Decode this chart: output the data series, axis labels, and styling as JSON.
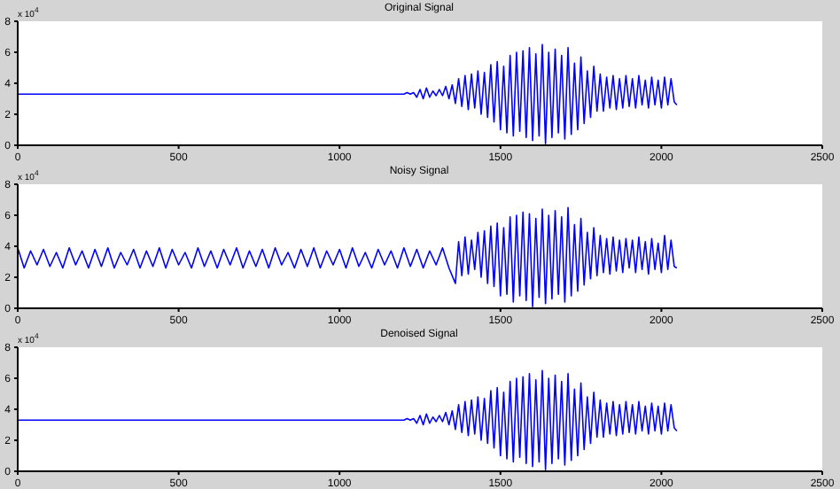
{
  "chart_data": [
    {
      "type": "line",
      "title": "Original Signal",
      "annotations": [
        "x 10$^{4}$"
      ],
      "xlim": [
        0,
        2500
      ],
      "xticks": [
        0,
        500,
        1000,
        1500,
        2000,
        2500
      ],
      "ylim": [
        0,
        8
      ],
      "yticks": [
        0,
        2,
        4,
        6,
        8
      ],
      "series": [
        {
          "color": "#0000ff",
          "x": [
            0,
            1200,
            1210,
            1220,
            1230,
            1240,
            1250,
            1260,
            1270,
            1280,
            1290,
            1300,
            1310,
            1320,
            1330,
            1340,
            1350,
            1360,
            1370,
            1380,
            1390,
            1400,
            1410,
            1420,
            1430,
            1440,
            1450,
            1460,
            1470,
            1480,
            1490,
            1500,
            1510,
            1520,
            1530,
            1540,
            1550,
            1560,
            1570,
            1580,
            1590,
            1600,
            1610,
            1620,
            1630,
            1640,
            1650,
            1660,
            1670,
            1680,
            1690,
            1700,
            1710,
            1720,
            1730,
            1740,
            1750,
            1760,
            1770,
            1780,
            1790,
            1800,
            1810,
            1820,
            1830,
            1840,
            1850,
            1860,
            1870,
            1880,
            1890,
            1900,
            1910,
            1920,
            1930,
            1940,
            1950,
            1960,
            1970,
            1980,
            1990,
            2000,
            2010,
            2020,
            2030,
            2040,
            2048
          ],
          "values": [
            3.3,
            3.3,
            3.4,
            3.3,
            3.4,
            3.1,
            3.6,
            3.0,
            3.7,
            3.1,
            3.5,
            3.2,
            3.6,
            3.2,
            3.8,
            3.0,
            3.9,
            2.7,
            4.3,
            2.5,
            4.5,
            2.3,
            4.6,
            2.4,
            4.8,
            2.0,
            4.7,
            1.8,
            5.2,
            1.5,
            5.4,
            1.0,
            5.1,
            0.8,
            5.8,
            0.6,
            6.0,
            0.9,
            6.1,
            0.5,
            6.3,
            0.3,
            5.9,
            0.6,
            6.5,
            0.1,
            6.0,
            0.5,
            6.2,
            0.8,
            5.8,
            0.4,
            6.3,
            0.7,
            5.3,
            1.0,
            5.7,
            1.4,
            4.8,
            1.8,
            5.1,
            2.2,
            4.6,
            2.2,
            4.4,
            2.4,
            4.5,
            2.3,
            4.3,
            2.4,
            4.5,
            2.5,
            4.3,
            2.4,
            4.5,
            2.6,
            4.2,
            2.4,
            4.4,
            2.6,
            4.2,
            2.4,
            4.4,
            2.6,
            4.3,
            2.8,
            2.6
          ]
        }
      ]
    },
    {
      "type": "line",
      "title": "Noisy Signal",
      "annotations": [
        "x 10$^{4}$"
      ],
      "xlim": [
        0,
        2500
      ],
      "xticks": [
        0,
        500,
        1000,
        1500,
        2000,
        2500
      ],
      "ylim": [
        0,
        8
      ],
      "yticks": [
        0,
        2,
        4,
        6,
        8
      ],
      "series": [
        {
          "color": "#0000ff",
          "x": [
            0,
            20,
            40,
            60,
            80,
            100,
            120,
            140,
            160,
            180,
            200,
            220,
            240,
            260,
            280,
            300,
            320,
            340,
            360,
            380,
            400,
            420,
            440,
            460,
            480,
            500,
            520,
            540,
            560,
            580,
            600,
            620,
            640,
            660,
            680,
            700,
            720,
            740,
            760,
            780,
            800,
            820,
            840,
            860,
            880,
            900,
            920,
            940,
            960,
            980,
            1000,
            1020,
            1040,
            1060,
            1080,
            1100,
            1120,
            1140,
            1160,
            1180,
            1200,
            1220,
            1240,
            1260,
            1280,
            1300,
            1320,
            1340,
            1360,
            1370,
            1380,
            1390,
            1400,
            1410,
            1420,
            1430,
            1440,
            1450,
            1460,
            1470,
            1480,
            1490,
            1500,
            1510,
            1520,
            1530,
            1540,
            1550,
            1560,
            1570,
            1580,
            1590,
            1600,
            1610,
            1620,
            1630,
            1640,
            1650,
            1660,
            1670,
            1680,
            1690,
            1700,
            1710,
            1720,
            1730,
            1740,
            1750,
            1760,
            1770,
            1780,
            1790,
            1800,
            1810,
            1820,
            1830,
            1840,
            1850,
            1860,
            1870,
            1880,
            1890,
            1900,
            1910,
            1920,
            1930,
            1940,
            1950,
            1960,
            1970,
            1980,
            1990,
            2000,
            2010,
            2020,
            2030,
            2040,
            2048
          ],
          "values": [
            3.9,
            2.6,
            3.7,
            2.8,
            3.8,
            2.7,
            3.6,
            2.6,
            3.9,
            2.8,
            3.7,
            2.6,
            3.8,
            2.7,
            3.9,
            2.6,
            3.6,
            2.8,
            3.8,
            2.6,
            3.7,
            2.7,
            3.9,
            2.6,
            3.8,
            2.8,
            3.6,
            2.6,
            3.9,
            2.7,
            3.7,
            2.6,
            3.8,
            2.8,
            3.9,
            2.6,
            3.7,
            2.7,
            3.8,
            2.6,
            3.9,
            2.8,
            3.6,
            2.6,
            3.8,
            2.7,
            3.9,
            2.6,
            3.7,
            2.8,
            3.8,
            2.6,
            3.9,
            2.7,
            3.6,
            2.6,
            3.8,
            2.8,
            3.7,
            2.6,
            3.9,
            2.7,
            3.8,
            2.6,
            3.7,
            2.8,
            3.9,
            2.6,
            1.6,
            4.3,
            2.1,
            4.6,
            2.2,
            4.4,
            2.5,
            4.9,
            2.0,
            5.0,
            1.6,
            5.3,
            1.4,
            5.5,
            0.8,
            5.2,
            0.9,
            5.9,
            0.4,
            6.0,
            0.8,
            6.2,
            0.5,
            6.1,
            0.1,
            5.8,
            0.7,
            6.4,
            0.3,
            6.0,
            0.6,
            6.3,
            0.9,
            5.9,
            0.4,
            6.5,
            0.8,
            5.4,
            1.1,
            5.8,
            1.5,
            4.9,
            1.9,
            5.2,
            2.1,
            4.7,
            2.3,
            4.5,
            2.2,
            4.6,
            2.4,
            4.4,
            2.3,
            4.5,
            2.6,
            4.4,
            2.3,
            4.6,
            2.5,
            4.3,
            2.2,
            4.5,
            2.5,
            4.2,
            2.3,
            4.7,
            2.5,
            4.4,
            2.7,
            2.6
          ]
        }
      ]
    },
    {
      "type": "line",
      "title": "Denoised Signal",
      "annotations": [
        "x 10$^{4}$"
      ],
      "xlim": [
        0,
        2500
      ],
      "xticks": [
        0,
        500,
        1000,
        1500,
        2000,
        2500
      ],
      "ylim": [
        0,
        8
      ],
      "yticks": [
        0,
        2,
        4,
        6,
        8
      ],
      "series": [
        {
          "color": "#0000ff",
          "x": [
            0,
            1200,
            1210,
            1220,
            1230,
            1240,
            1250,
            1260,
            1270,
            1280,
            1290,
            1300,
            1310,
            1320,
            1330,
            1340,
            1350,
            1360,
            1370,
            1380,
            1390,
            1400,
            1410,
            1420,
            1430,
            1440,
            1450,
            1460,
            1470,
            1480,
            1490,
            1500,
            1510,
            1520,
            1530,
            1540,
            1550,
            1560,
            1570,
            1580,
            1590,
            1600,
            1610,
            1620,
            1630,
            1640,
            1650,
            1660,
            1670,
            1680,
            1690,
            1700,
            1710,
            1720,
            1730,
            1740,
            1750,
            1760,
            1770,
            1780,
            1790,
            1800,
            1810,
            1820,
            1830,
            1840,
            1850,
            1860,
            1870,
            1880,
            1890,
            1900,
            1910,
            1920,
            1930,
            1940,
            1950,
            1960,
            1970,
            1980,
            1990,
            2000,
            2010,
            2020,
            2030,
            2040,
            2048
          ],
          "values": [
            3.3,
            3.3,
            3.4,
            3.3,
            3.4,
            3.1,
            3.6,
            3.0,
            3.7,
            3.1,
            3.5,
            3.2,
            3.6,
            3.2,
            3.8,
            3.0,
            3.9,
            2.7,
            4.3,
            2.5,
            4.5,
            2.3,
            4.6,
            2.4,
            4.8,
            2.0,
            4.7,
            1.8,
            5.2,
            1.5,
            5.4,
            1.0,
            5.1,
            0.8,
            5.8,
            0.6,
            6.0,
            0.9,
            6.1,
            0.5,
            6.3,
            0.3,
            5.9,
            0.6,
            6.5,
            0.1,
            6.0,
            0.5,
            6.2,
            0.8,
            5.8,
            0.4,
            6.3,
            0.7,
            5.3,
            1.0,
            5.7,
            1.4,
            4.8,
            1.8,
            5.1,
            2.2,
            4.6,
            2.2,
            4.4,
            2.4,
            4.5,
            2.3,
            4.3,
            2.4,
            4.5,
            2.5,
            4.3,
            2.4,
            4.5,
            2.6,
            4.2,
            2.4,
            4.4,
            2.6,
            4.2,
            2.4,
            4.4,
            2.6,
            4.3,
            2.8,
            2.6
          ]
        }
      ]
    }
  ]
}
